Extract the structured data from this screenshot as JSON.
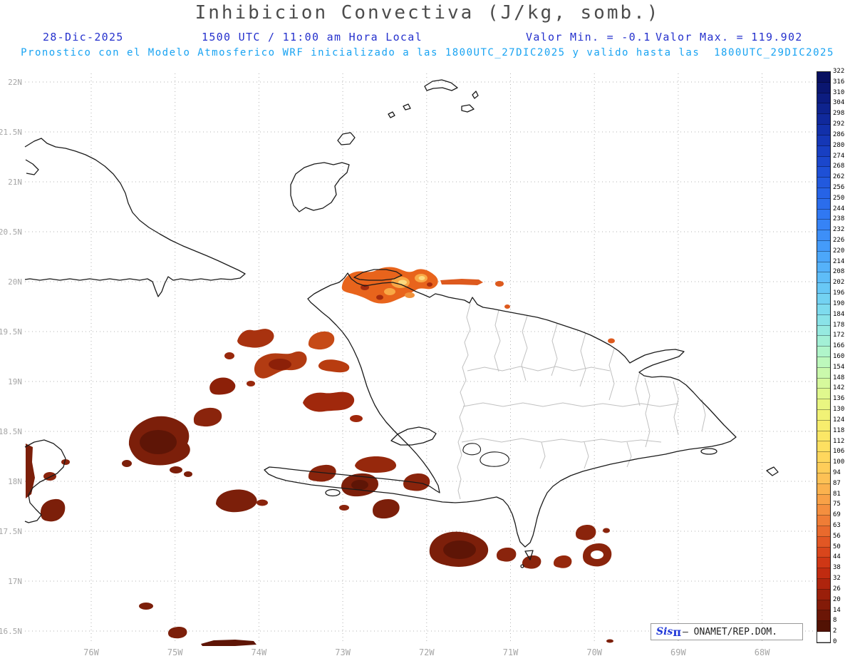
{
  "header": {
    "title": "Inhibicion Convectiva (J/kg, somb.)",
    "date": "28-Dic-2025",
    "local_time": "1500 UTC / 11:00 am Hora Local",
    "valor_min": "Valor Min. = -0.1",
    "valor_max": "Valor Max. = 119.902",
    "model_line": "Pronostico con el Modelo Atmosferico WRF inicializado a las 1800UTC_27DIC2025 y valido hasta las  1800UTC_29DIC2025"
  },
  "axes": {
    "lat_labels": [
      "22N",
      "21.5N",
      "21N",
      "20.5N",
      "20N",
      "19.5N",
      "19N",
      "18.5N",
      "18N",
      "17.5N",
      "17N",
      "16.5N"
    ],
    "lon_labels": [
      "76W",
      "75W",
      "74W",
      "73W",
      "72W",
      "71W",
      "70W",
      "69W",
      "68W"
    ]
  },
  "colorbar": {
    "unit": "J/kg",
    "ticks": [
      322,
      316,
      310,
      304,
      298,
      292,
      286,
      280,
      274,
      268,
      262,
      256,
      250,
      244,
      238,
      232,
      226,
      220,
      214,
      208,
      202,
      196,
      190,
      184,
      178,
      172,
      166,
      160,
      154,
      148,
      142,
      136,
      130,
      124,
      118,
      112,
      106,
      100,
      94,
      87,
      81,
      75,
      69,
      63,
      56,
      50,
      44,
      38,
      32,
      26,
      20,
      14,
      8,
      2,
      0
    ],
    "segment_colors": [
      "#081060",
      "#0a1670",
      "#0c1c80",
      "#0e238e",
      "#10299c",
      "#1230aa",
      "#1537b6",
      "#183fc2",
      "#1b47cc",
      "#1e50d6",
      "#2259de",
      "#2663e6",
      "#2b6dec",
      "#3078f2",
      "#3683f6",
      "#3d8ff8",
      "#449bfa",
      "#4ca7fa",
      "#55b2fa",
      "#5ebdf8",
      "#68c8f6",
      "#73d2f2",
      "#7edbee",
      "#8ae3e8",
      "#96eae0",
      "#a3f0d6",
      "#b0f5ca",
      "#bdf8bc",
      "#caf9ac",
      "#d6f99c",
      "#e0f88e",
      "#e9f681",
      "#f1f276",
      "#f7ed6d",
      "#fbe766",
      "#fde061",
      "#fed75d",
      "#fecd59",
      "#fdc155",
      "#fbb24e",
      "#f8a147",
      "#f48f3f",
      "#ef7d36",
      "#e96a2d",
      "#e25724",
      "#d9461c",
      "#cf3715",
      "#c02b10",
      "#ae240d",
      "#9a1f0a",
      "#831b08",
      "#6b1606",
      "#521204",
      "#ffffff"
    ]
  },
  "credit": {
    "logo": "Sis",
    "logo_pi": "π",
    "text": "– ONAMET/REP.DOM."
  },
  "colors": {
    "header_blue": "#2531cd",
    "header_cyan": "#18a3f2",
    "title_gray": "#4c4c4c",
    "axis_gray": "#a6a6a6",
    "coastline": "#1a1a1a",
    "province_gray": "#c0c0c0",
    "shading_dark_maroon": "#5e1506",
    "shading_brick": "#8a240c",
    "shading_orange": "#e8641c",
    "shading_light_orange": "#f9a845",
    "shading_pale_yellow": "#fcd97e"
  }
}
